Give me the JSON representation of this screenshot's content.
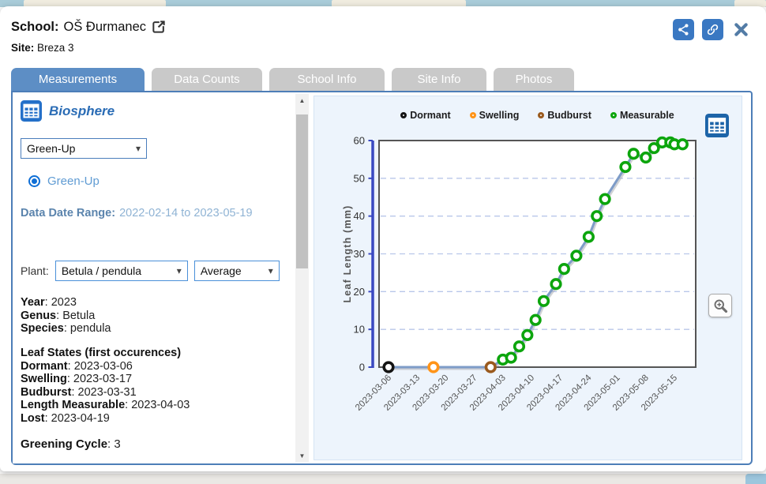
{
  "header": {
    "school_label": "School:",
    "school_name": "OŠ Đurmanec",
    "site_label": "Site:",
    "site_name": "Breza 3"
  },
  "toolbar": {
    "icons": [
      "share-icon",
      "link-icon",
      "close-icon"
    ]
  },
  "tabs": [
    {
      "label": "Measurements",
      "active": true
    },
    {
      "label": "Data Counts",
      "active": false
    },
    {
      "label": "School Info",
      "active": false
    },
    {
      "label": "Site Info",
      "active": false
    },
    {
      "label": "Photos",
      "active": false
    }
  ],
  "sidebar": {
    "section_title": "Biosphere",
    "section_icon": "table-grid-icon",
    "protocol_select": {
      "value": "Green-Up"
    },
    "radio": {
      "label": "Green-Up",
      "selected": true
    },
    "date_range": {
      "label": "Data Date Range:",
      "value": "2022-02-14 to 2023-05-19"
    },
    "plant": {
      "label": "Plant:",
      "plant_value": "Betula / pendula",
      "mode_value": "Average"
    },
    "info": [
      {
        "label": "Year",
        "value": "2023"
      },
      {
        "label": "Genus",
        "value": "Betula"
      },
      {
        "label": "Species",
        "value": "pendula"
      }
    ],
    "leaf_states": {
      "title": "Leaf States (first occurences)",
      "items": [
        {
          "label": "Dormant",
          "value": "2023-03-06"
        },
        {
          "label": "Swelling",
          "value": "2023-03-17"
        },
        {
          "label": "Budburst",
          "value": "2023-03-31"
        },
        {
          "label": "Length Measurable",
          "value": "2023-04-03"
        },
        {
          "label": "Lost",
          "value": "2023-04-19"
        }
      ]
    },
    "greening": {
      "label": "Greening Cycle",
      "value": "3"
    },
    "separator": ": "
  },
  "chart_panel": {
    "table_button_icon": "table-grid-icon",
    "zoom_button_icon": "zoom-in-icon"
  },
  "chart_data": {
    "type": "line",
    "ylabel": "Leaf Length (mm)",
    "ylim": [
      0,
      60
    ],
    "yticks": [
      0,
      10,
      20,
      30,
      40,
      50,
      60
    ],
    "xticks": [
      "2023-03-06",
      "2023-03-13",
      "2023-03-20",
      "2023-03-27",
      "2023-04-03",
      "2023-04-10",
      "2023-04-17",
      "2023-04-24",
      "2023-05-01",
      "2023-05-08",
      "2023-05-15"
    ],
    "grid": "horizontal-dashed",
    "grid_color": "#b9c7ea",
    "axis_color": "#3a49c1",
    "frame_color": "#555555",
    "legend_position": "top",
    "legend": [
      {
        "label": "Dormant",
        "color": "#141414"
      },
      {
        "label": "Swelling",
        "color": "#ff9418"
      },
      {
        "label": "Budburst",
        "color": "#9a5a1e"
      },
      {
        "label": "Measurable",
        "color": "#0ca50d"
      }
    ],
    "state_colors": {
      "dormant": "#141414",
      "swelling": "#ff9418",
      "budburst": "#9a5a1e",
      "measurable": "#0ca50d"
    },
    "series": [
      {
        "name": "Leaf Length average",
        "color": "#7e9cc8",
        "points": [
          {
            "date": "2023-03-06",
            "value": 0,
            "state": "dormant"
          },
          {
            "date": "2023-03-17",
            "value": 0,
            "state": "swelling"
          },
          {
            "date": "2023-03-31",
            "value": 0,
            "state": "budburst"
          },
          {
            "date": "2023-04-03",
            "value": 2,
            "state": "measurable"
          },
          {
            "date": "2023-04-05",
            "value": 2.5,
            "state": "measurable"
          },
          {
            "date": "2023-04-07",
            "value": 5.5,
            "state": "measurable"
          },
          {
            "date": "2023-04-09",
            "value": 8.5,
            "state": "measurable"
          },
          {
            "date": "2023-04-11",
            "value": 12.5,
            "state": "measurable"
          },
          {
            "date": "2023-04-13",
            "value": 17.5,
            "state": "measurable"
          },
          {
            "date": "2023-04-16",
            "value": 22,
            "state": "measurable"
          },
          {
            "date": "2023-04-18",
            "value": 26,
            "state": "measurable"
          },
          {
            "date": "2023-04-21",
            "value": 29.5,
            "state": "measurable"
          },
          {
            "date": "2023-04-24",
            "value": 34.5,
            "state": "measurable"
          },
          {
            "date": "2023-04-26",
            "value": 40,
            "state": "measurable"
          },
          {
            "date": "2023-04-28",
            "value": 44.5,
            "state": "measurable"
          },
          {
            "date": "2023-05-03",
            "value": 53,
            "state": "measurable"
          },
          {
            "date": "2023-05-05",
            "value": 56.5,
            "state": "measurable"
          },
          {
            "date": "2023-05-08",
            "value": 55.5,
            "state": "measurable"
          },
          {
            "date": "2023-05-10",
            "value": 58,
            "state": "measurable"
          },
          {
            "date": "2023-05-12",
            "value": 59.5,
            "state": "measurable"
          },
          {
            "date": "2023-05-14",
            "value": 59.5,
            "state": "measurable"
          },
          {
            "date": "2023-05-15",
            "value": 59,
            "state": "measurable"
          },
          {
            "date": "2023-05-17",
            "value": 59,
            "state": "measurable"
          }
        ]
      }
    ]
  }
}
